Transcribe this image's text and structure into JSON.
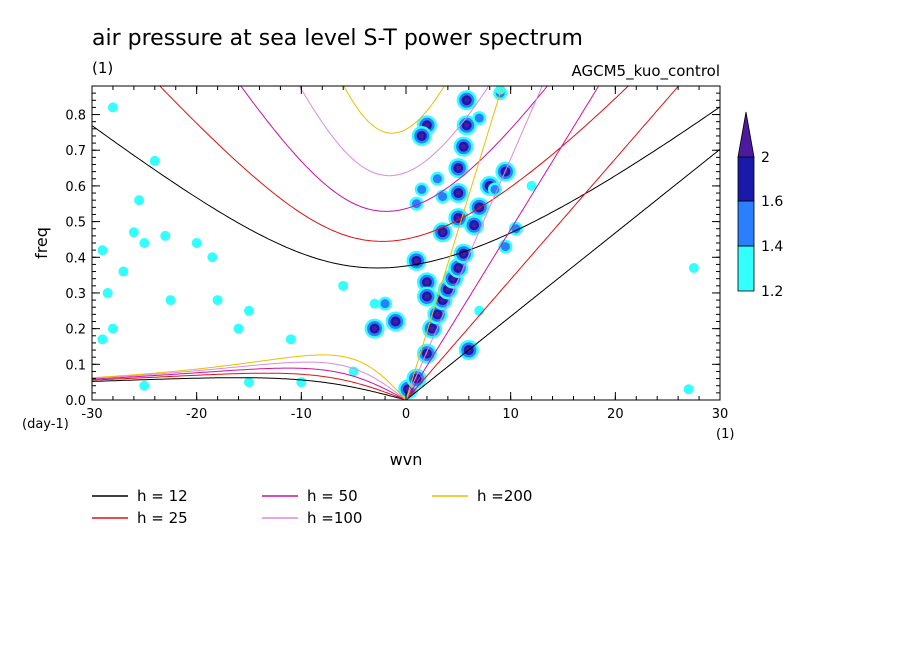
{
  "chart_data": {
    "type": "heatmap",
    "title": "air pressure at sea level S-T power spectrum",
    "subtitle": "(1)",
    "model_label": "AGCM5_kuo_control",
    "xlabel": "wvn",
    "ylabel": "freq",
    "x_unit": "(1)",
    "y_unit": "(day-1)",
    "xlim": [
      -30,
      30
    ],
    "ylim": [
      0,
      0.88
    ],
    "x_ticks": [
      -30,
      -20,
      -10,
      0,
      10,
      20,
      30
    ],
    "x_tick_labels": [
      "-30",
      "-20",
      "-10",
      "0",
      "10",
      "20",
      "30"
    ],
    "y_ticks": [
      0,
      0.1,
      0.2,
      0.3,
      0.4,
      0.5,
      0.6,
      0.7,
      0.8
    ],
    "y_tick_labels": [
      "0.0",
      "0.1",
      "0.2",
      "0.3",
      "0.4",
      "0.5",
      "0.6",
      "0.7",
      "0.8"
    ],
    "colorbar": {
      "levels": [
        1.2,
        1.4,
        1.6,
        2
      ],
      "level_labels": [
        "1.2",
        "1.4",
        "1.6",
        "2"
      ],
      "colors": [
        "#33ffff",
        "#2a7fff",
        "#1a1aaa",
        "#4b1a9e"
      ]
    },
    "dispersion_curves": [
      {
        "name": "h = 12",
        "h": 12,
        "color": "#000000"
      },
      {
        "name": "h = 25",
        "h": 25,
        "color": "#e01010"
      },
      {
        "name": "h = 50",
        "h": 50,
        "color": "#cc10aa"
      },
      {
        "name": "h =100",
        "h": 100,
        "color": "#dd88dd"
      },
      {
        "name": "h =200",
        "h": 200,
        "color": "#e8c000"
      }
    ],
    "contours": [
      {
        "x": 0.2,
        "y": 0.03,
        "level": 2
      },
      {
        "x": 1.0,
        "y": 0.06,
        "level": 2
      },
      {
        "x": 2.0,
        "y": 0.13,
        "level": 2
      },
      {
        "x": 2.5,
        "y": 0.2,
        "level": 2
      },
      {
        "x": 3.0,
        "y": 0.24,
        "level": 2
      },
      {
        "x": 3.5,
        "y": 0.28,
        "level": 2
      },
      {
        "x": 4.0,
        "y": 0.31,
        "level": 2
      },
      {
        "x": 4.5,
        "y": 0.34,
        "level": 2
      },
      {
        "x": 5.0,
        "y": 0.37,
        "level": 2
      },
      {
        "x": 5.5,
        "y": 0.41,
        "level": 2
      },
      {
        "x": 1.0,
        "y": 0.39,
        "level": 2
      },
      {
        "x": 3.5,
        "y": 0.47,
        "level": 2
      },
      {
        "x": 5.0,
        "y": 0.51,
        "level": 2
      },
      {
        "x": 7.0,
        "y": 0.54,
        "level": 2
      },
      {
        "x": 6.5,
        "y": 0.49,
        "level": 2
      },
      {
        "x": 5.0,
        "y": 0.58,
        "level": 2
      },
      {
        "x": 5.0,
        "y": 0.65,
        "level": 2
      },
      {
        "x": 5.5,
        "y": 0.71,
        "level": 2
      },
      {
        "x": 5.8,
        "y": 0.77,
        "level": 2
      },
      {
        "x": 5.8,
        "y": 0.84,
        "level": 2
      },
      {
        "x": 2.0,
        "y": 0.77,
        "level": 2
      },
      {
        "x": 1.5,
        "y": 0.74,
        "level": 2
      },
      {
        "x": 8.0,
        "y": 0.6,
        "level": 2
      },
      {
        "x": 9.5,
        "y": 0.64,
        "level": 2
      },
      {
        "x": 2.0,
        "y": 0.33,
        "level": 2
      },
      {
        "x": 2.0,
        "y": 0.29,
        "level": 2
      },
      {
        "x": -1.0,
        "y": 0.22,
        "level": 2
      },
      {
        "x": -3.0,
        "y": 0.2,
        "level": 2
      },
      {
        "x": 6.0,
        "y": 0.14,
        "level": 2
      },
      {
        "x": -2.0,
        "y": 0.27,
        "level": 1.4
      },
      {
        "x": 1.5,
        "y": 0.59,
        "level": 1.4
      },
      {
        "x": 3.0,
        "y": 0.62,
        "level": 1.4
      },
      {
        "x": 3.5,
        "y": 0.57,
        "level": 1.4
      },
      {
        "x": 8.5,
        "y": 0.59,
        "level": 1.4
      },
      {
        "x": 9.5,
        "y": 0.43,
        "level": 1.4
      },
      {
        "x": 9.0,
        "y": 0.86,
        "level": 1.4
      },
      {
        "x": 1.0,
        "y": 0.55,
        "level": 1.4
      },
      {
        "x": 7.0,
        "y": 0.79,
        "level": 1.4
      },
      {
        "x": 10.5,
        "y": 0.48,
        "level": 1.4
      },
      {
        "x": -28.0,
        "y": 0.82,
        "level": 1.2
      },
      {
        "x": -29.0,
        "y": 0.42,
        "level": 1.2
      },
      {
        "x": -27.0,
        "y": 0.36,
        "level": 1.2
      },
      {
        "x": -28.5,
        "y": 0.3,
        "level": 1.2
      },
      {
        "x": -25.5,
        "y": 0.56,
        "level": 1.2
      },
      {
        "x": -24.0,
        "y": 0.67,
        "level": 1.2
      },
      {
        "x": -26.0,
        "y": 0.47,
        "level": 1.2
      },
      {
        "x": -23.0,
        "y": 0.46,
        "level": 1.2
      },
      {
        "x": -25.0,
        "y": 0.44,
        "level": 1.2
      },
      {
        "x": -20.0,
        "y": 0.44,
        "level": 1.2
      },
      {
        "x": -18.5,
        "y": 0.4,
        "level": 1.2
      },
      {
        "x": -22.5,
        "y": 0.28,
        "level": 1.2
      },
      {
        "x": -16.0,
        "y": 0.2,
        "level": 1.2
      },
      {
        "x": -18.0,
        "y": 0.28,
        "level": 1.2
      },
      {
        "x": -6.0,
        "y": 0.32,
        "level": 1.2
      },
      {
        "x": -3.0,
        "y": 0.27,
        "level": 1.2
      },
      {
        "x": -11.0,
        "y": 0.17,
        "level": 1.2
      },
      {
        "x": -15.0,
        "y": 0.05,
        "level": 1.2
      },
      {
        "x": -29.0,
        "y": 0.17,
        "level": 1.2
      },
      {
        "x": -28.0,
        "y": 0.2,
        "level": 1.2
      },
      {
        "x": -25.0,
        "y": 0.04,
        "level": 1.2
      },
      {
        "x": -5.0,
        "y": 0.08,
        "level": 1.2
      },
      {
        "x": -10.0,
        "y": 0.05,
        "level": 1.2
      },
      {
        "x": 9.0,
        "y": 0.87,
        "level": 1.2
      },
      {
        "x": 7.0,
        "y": 0.25,
        "level": 1.2
      },
      {
        "x": 12.0,
        "y": 0.6,
        "level": 1.2
      },
      {
        "x": 27.5,
        "y": 0.37,
        "level": 1.2
      },
      {
        "x": 27.0,
        "y": 0.03,
        "level": 1.2
      },
      {
        "x": -15.0,
        "y": 0.25,
        "level": 1.2
      }
    ]
  }
}
